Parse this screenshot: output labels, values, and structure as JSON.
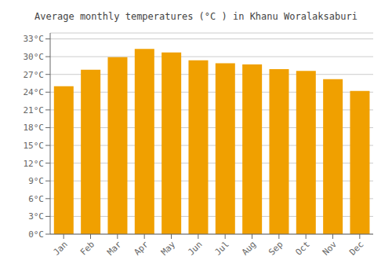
{
  "chart_data": {
    "type": "bar",
    "title": "Average monthly temperatures (°C ) in Khanu Woralaksaburi",
    "categories": [
      "Jan",
      "Feb",
      "Mar",
      "Apr",
      "May",
      "Jun",
      "Jul",
      "Aug",
      "Sep",
      "Oct",
      "Nov",
      "Dec"
    ],
    "values": [
      25.0,
      27.8,
      29.9,
      31.3,
      30.7,
      29.4,
      28.9,
      28.7,
      27.9,
      27.6,
      26.2,
      24.2
    ],
    "color": "#F0A000",
    "ylim": [
      0,
      34
    ],
    "yticks": [
      {
        "value": 0,
        "label": "0°C"
      },
      {
        "value": 3,
        "label": "3°C"
      },
      {
        "value": 6,
        "label": "6°C"
      },
      {
        "value": 9,
        "label": "9°C"
      },
      {
        "value": 12,
        "label": "12°C"
      },
      {
        "value": 15,
        "label": "15°C"
      },
      {
        "value": 18,
        "label": "18°C"
      },
      {
        "value": 21,
        "label": "21°C"
      },
      {
        "value": 24,
        "label": "24°C"
      },
      {
        "value": 27,
        "label": "27°C"
      },
      {
        "value": 30,
        "label": "30°C"
      },
      {
        "value": 33,
        "label": "33°C"
      }
    ],
    "grid": true
  }
}
